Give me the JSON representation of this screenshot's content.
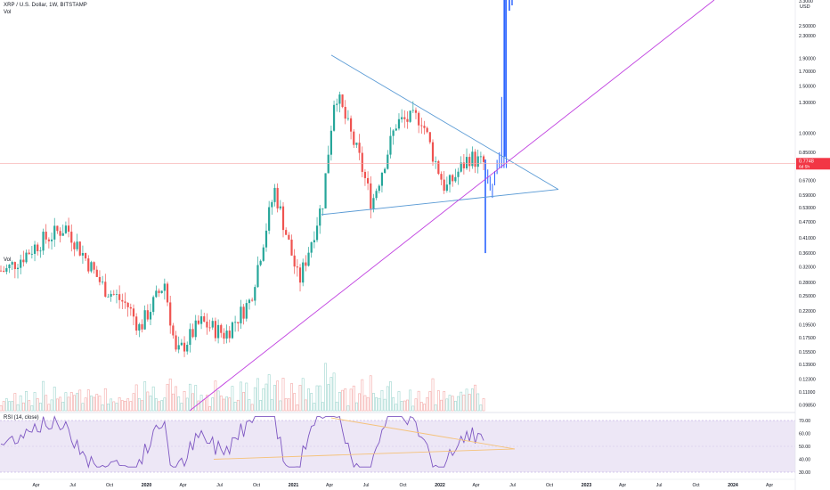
{
  "legend": {
    "title": "XRP / U.S. Dollar, 1W, BITSTAMP",
    "vol": "Vol",
    "vol2": "Vol",
    "rsi": "RSI (14, close)"
  },
  "axis": {
    "currency": "USD"
  },
  "price_badge": {
    "price": "0.7748",
    "countdown": "6d 5h",
    "color": "#f23645"
  },
  "colors": {
    "up": "#26a69a",
    "down": "#ef5350",
    "forecast": "#2962ff",
    "triangle": "#5b9bd5",
    "support": "#c040e0",
    "rsi_line": "#7e57c2",
    "rsi_fill": "#ede7f6",
    "rsi_trend": "#f5c27a"
  },
  "chart_data": [
    {
      "type": "candlestick",
      "title": "XRP / U.S. Dollar, 1W, BITSTAMP",
      "scale": "log",
      "ylim": [
        0.09,
        3.3
      ],
      "y_ticks": [
        "0.09850",
        "0.11000",
        "0.12300",
        "0.13900",
        "0.15500",
        "0.17500",
        "0.19500",
        "0.22000",
        "0.25000",
        "0.28000",
        "0.32000",
        "0.36000",
        "0.41000",
        "0.47000",
        "0.53000",
        "0.59000",
        "0.67000",
        "0.85000",
        "1.00000",
        "1.30000",
        "1.50000",
        "1.70000",
        "1.90000",
        "2.30000",
        "2.50000",
        "2.80000",
        "3.00000",
        "3.3000"
      ],
      "x_ticks": [
        "Apr",
        "Jul",
        "Oct",
        "2020",
        "Apr",
        "Jul",
        "Oct",
        "2021",
        "Apr",
        "Jul",
        "Oct",
        "2022",
        "Apr",
        "Jul",
        "Oct",
        "2023",
        "Apr",
        "Jul",
        "Oct",
        "2024",
        "Apr"
      ],
      "close_series": [
        {
          "date": "2019-01",
          "value": 0.31
        },
        {
          "date": "2019-04",
          "value": 0.4
        },
        {
          "date": "2019-06",
          "value": 0.45
        },
        {
          "date": "2019-09",
          "value": 0.27
        },
        {
          "date": "2019-11",
          "value": 0.23
        },
        {
          "date": "2019-12",
          "value": 0.19
        },
        {
          "date": "2020-02",
          "value": 0.28
        },
        {
          "date": "2020-03",
          "value": 0.15
        },
        {
          "date": "2020-05",
          "value": 0.2
        },
        {
          "date": "2020-07",
          "value": 0.18
        },
        {
          "date": "2020-09",
          "value": 0.24
        },
        {
          "date": "2020-11",
          "value": 0.62
        },
        {
          "date": "2021-01",
          "value": 0.28
        },
        {
          "date": "2021-03",
          "value": 0.56
        },
        {
          "date": "2021-04",
          "value": 1.45
        },
        {
          "date": "2021-06",
          "value": 0.8
        },
        {
          "date": "2021-07",
          "value": 0.55
        },
        {
          "date": "2021-09",
          "value": 1.1
        },
        {
          "date": "2021-11",
          "value": 1.15
        },
        {
          "date": "2021-12",
          "value": 0.83
        },
        {
          "date": "2022-01",
          "value": 0.62
        },
        {
          "date": "2022-03",
          "value": 0.82
        },
        {
          "date": "2022-04",
          "value": 0.7748
        }
      ],
      "price_label": "0.7748"
    },
    {
      "type": "line",
      "title": "RSI (14, close)",
      "ylim": [
        30,
        70
      ],
      "y_ticks": [
        "70.00",
        "60.00",
        "50.00",
        "40.00",
        "30.00"
      ]
    }
  ]
}
